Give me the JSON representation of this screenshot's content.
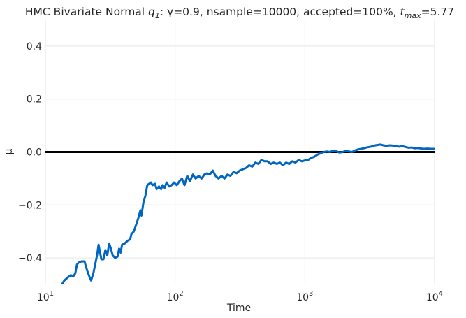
{
  "chart_data": {
    "type": "line",
    "title": {
      "prefix": "HMC Bivariate Normal ",
      "q_base": "q",
      "q_sub": "1",
      "middle": ": γ=0.9, nsample=10000, accepted=100%, ",
      "t_base": "t",
      "t_sub": "max",
      "suffix": "=5.77"
    },
    "xlabel": "Time",
    "ylabel": "μ",
    "xscale": "log",
    "xlim": [
      10,
      10000
    ],
    "ylim": [
      -0.5,
      0.5
    ],
    "grid": true,
    "x_ticks": [
      {
        "value": 10,
        "base": "10",
        "exp": "1"
      },
      {
        "value": 100,
        "base": "10",
        "exp": "2"
      },
      {
        "value": 1000,
        "base": "10",
        "exp": "3"
      },
      {
        "value": 10000,
        "base": "10",
        "exp": "4"
      }
    ],
    "y_ticks": [
      {
        "value": 0.4,
        "label": "0.4"
      },
      {
        "value": 0.2,
        "label": "0.2"
      },
      {
        "value": 0.0,
        "label": "0.0"
      },
      {
        "value": -0.2,
        "label": "−0.2"
      },
      {
        "value": -0.4,
        "label": "−0.4"
      }
    ],
    "reference_line": {
      "y": 0.0,
      "color": "#000000"
    },
    "series": [
      {
        "color": "#0066c2",
        "points": [
          [
            13.2,
            -0.505
          ],
          [
            14.0,
            -0.485
          ],
          [
            15.0,
            -0.472
          ],
          [
            15.7,
            -0.465
          ],
          [
            16.4,
            -0.47
          ],
          [
            17.0,
            -0.458
          ],
          [
            17.5,
            -0.425
          ],
          [
            18.0,
            -0.418
          ],
          [
            19.0,
            -0.413
          ],
          [
            20.0,
            -0.413
          ],
          [
            21.0,
            -0.448
          ],
          [
            22.0,
            -0.475
          ],
          [
            22.5,
            -0.485
          ],
          [
            23.5,
            -0.455
          ],
          [
            25.0,
            -0.39
          ],
          [
            25.7,
            -0.35
          ],
          [
            27.0,
            -0.405
          ],
          [
            28.0,
            -0.405
          ],
          [
            29.0,
            -0.37
          ],
          [
            30.0,
            -0.39
          ],
          [
            31.0,
            -0.345
          ],
          [
            32.0,
            -0.365
          ],
          [
            33.0,
            -0.39
          ],
          [
            34.5,
            -0.4
          ],
          [
            36.0,
            -0.395
          ],
          [
            37.0,
            -0.365
          ],
          [
            38.0,
            -0.38
          ],
          [
            39.0,
            -0.35
          ],
          [
            41.0,
            -0.345
          ],
          [
            43.0,
            -0.335
          ],
          [
            45.0,
            -0.33
          ],
          [
            46.0,
            -0.31
          ],
          [
            48.0,
            -0.3
          ],
          [
            50.0,
            -0.275
          ],
          [
            52.0,
            -0.25
          ],
          [
            54.0,
            -0.22
          ],
          [
            55.0,
            -0.24
          ],
          [
            57.0,
            -0.19
          ],
          [
            59.0,
            -0.165
          ],
          [
            61.0,
            -0.125
          ],
          [
            63.0,
            -0.12
          ],
          [
            65.0,
            -0.115
          ],
          [
            67.0,
            -0.125
          ],
          [
            70.0,
            -0.12
          ],
          [
            72.0,
            -0.14
          ],
          [
            75.0,
            -0.13
          ],
          [
            78.0,
            -0.14
          ],
          [
            80.0,
            -0.125
          ],
          [
            83.0,
            -0.135
          ],
          [
            86.0,
            -0.115
          ],
          [
            90.0,
            -0.13
          ],
          [
            94.0,
            -0.125
          ],
          [
            98.0,
            -0.115
          ],
          [
            103.0,
            -0.125
          ],
          [
            108.0,
            -0.11
          ],
          [
            113.0,
            -0.1
          ],
          [
            118.0,
            -0.125
          ],
          [
            124.0,
            -0.09
          ],
          [
            130.0,
            -0.11
          ],
          [
            137.0,
            -0.085
          ],
          [
            144.0,
            -0.1
          ],
          [
            152.0,
            -0.09
          ],
          [
            160.0,
            -0.1
          ],
          [
            168.0,
            -0.085
          ],
          [
            176.0,
            -0.08
          ],
          [
            185.0,
            -0.085
          ],
          [
            195.0,
            -0.07
          ],
          [
            205.0,
            -0.09
          ],
          [
            216.0,
            -0.1
          ],
          [
            228.0,
            -0.09
          ],
          [
            240.0,
            -0.1
          ],
          [
            253.0,
            -0.085
          ],
          [
            267.0,
            -0.09
          ],
          [
            282.0,
            -0.075
          ],
          [
            298.0,
            -0.08
          ],
          [
            315.0,
            -0.07
          ],
          [
            333.0,
            -0.065
          ],
          [
            352.0,
            -0.06
          ],
          [
            372.0,
            -0.05
          ],
          [
            393.0,
            -0.055
          ],
          [
            415.0,
            -0.04
          ],
          [
            438.0,
            -0.045
          ],
          [
            462.0,
            -0.03
          ],
          [
            488.0,
            -0.035
          ],
          [
            515.0,
            -0.035
          ],
          [
            545.0,
            -0.045
          ],
          [
            576.0,
            -0.04
          ],
          [
            608.0,
            -0.045
          ],
          [
            642.0,
            -0.04
          ],
          [
            678.0,
            -0.05
          ],
          [
            716.0,
            -0.04
          ],
          [
            757.0,
            -0.045
          ],
          [
            800.0,
            -0.035
          ],
          [
            846.0,
            -0.04
          ],
          [
            895.0,
            -0.03
          ],
          [
            947.0,
            -0.035
          ],
          [
            1000.0,
            -0.032
          ],
          [
            1058.0,
            -0.03
          ],
          [
            1119.0,
            -0.022
          ],
          [
            1183.0,
            -0.018
          ],
          [
            1250.0,
            -0.01
          ],
          [
            1322.0,
            -0.005
          ],
          [
            1398.0,
            0.0
          ],
          [
            1478.0,
            0.002
          ],
          [
            1563.0,
            0.0
          ],
          [
            1653.0,
            0.005
          ],
          [
            1748.0,
            0.003
          ],
          [
            1848.0,
            -0.002
          ],
          [
            1954.0,
            0.0
          ],
          [
            2066.0,
            0.004
          ],
          [
            2185.0,
            0.002
          ],
          [
            2310.0,
            0.0
          ],
          [
            2443.0,
            0.006
          ],
          [
            2583.0,
            0.01
          ],
          [
            2731.0,
            0.012
          ],
          [
            2888.0,
            0.015
          ],
          [
            3054.0,
            0.018
          ],
          [
            3229.0,
            0.02
          ],
          [
            3414.0,
            0.024
          ],
          [
            3610.0,
            0.026
          ],
          [
            3817.0,
            0.028
          ],
          [
            4036.0,
            0.025
          ],
          [
            4268.0,
            0.023
          ],
          [
            4513.0,
            0.025
          ],
          [
            4772.0,
            0.024
          ],
          [
            5046.0,
            0.022
          ],
          [
            5335.0,
            0.02
          ],
          [
            5641.0,
            0.022
          ],
          [
            5965.0,
            0.019
          ],
          [
            6307.0,
            0.016
          ],
          [
            6669.0,
            0.017
          ],
          [
            7052.0,
            0.014
          ],
          [
            7456.0,
            0.015
          ],
          [
            7884.0,
            0.013
          ],
          [
            8336.0,
            0.012
          ],
          [
            8814.0,
            0.013
          ],
          [
            9320.0,
            0.012
          ],
          [
            10000.0,
            0.012
          ]
        ]
      }
    ]
  }
}
